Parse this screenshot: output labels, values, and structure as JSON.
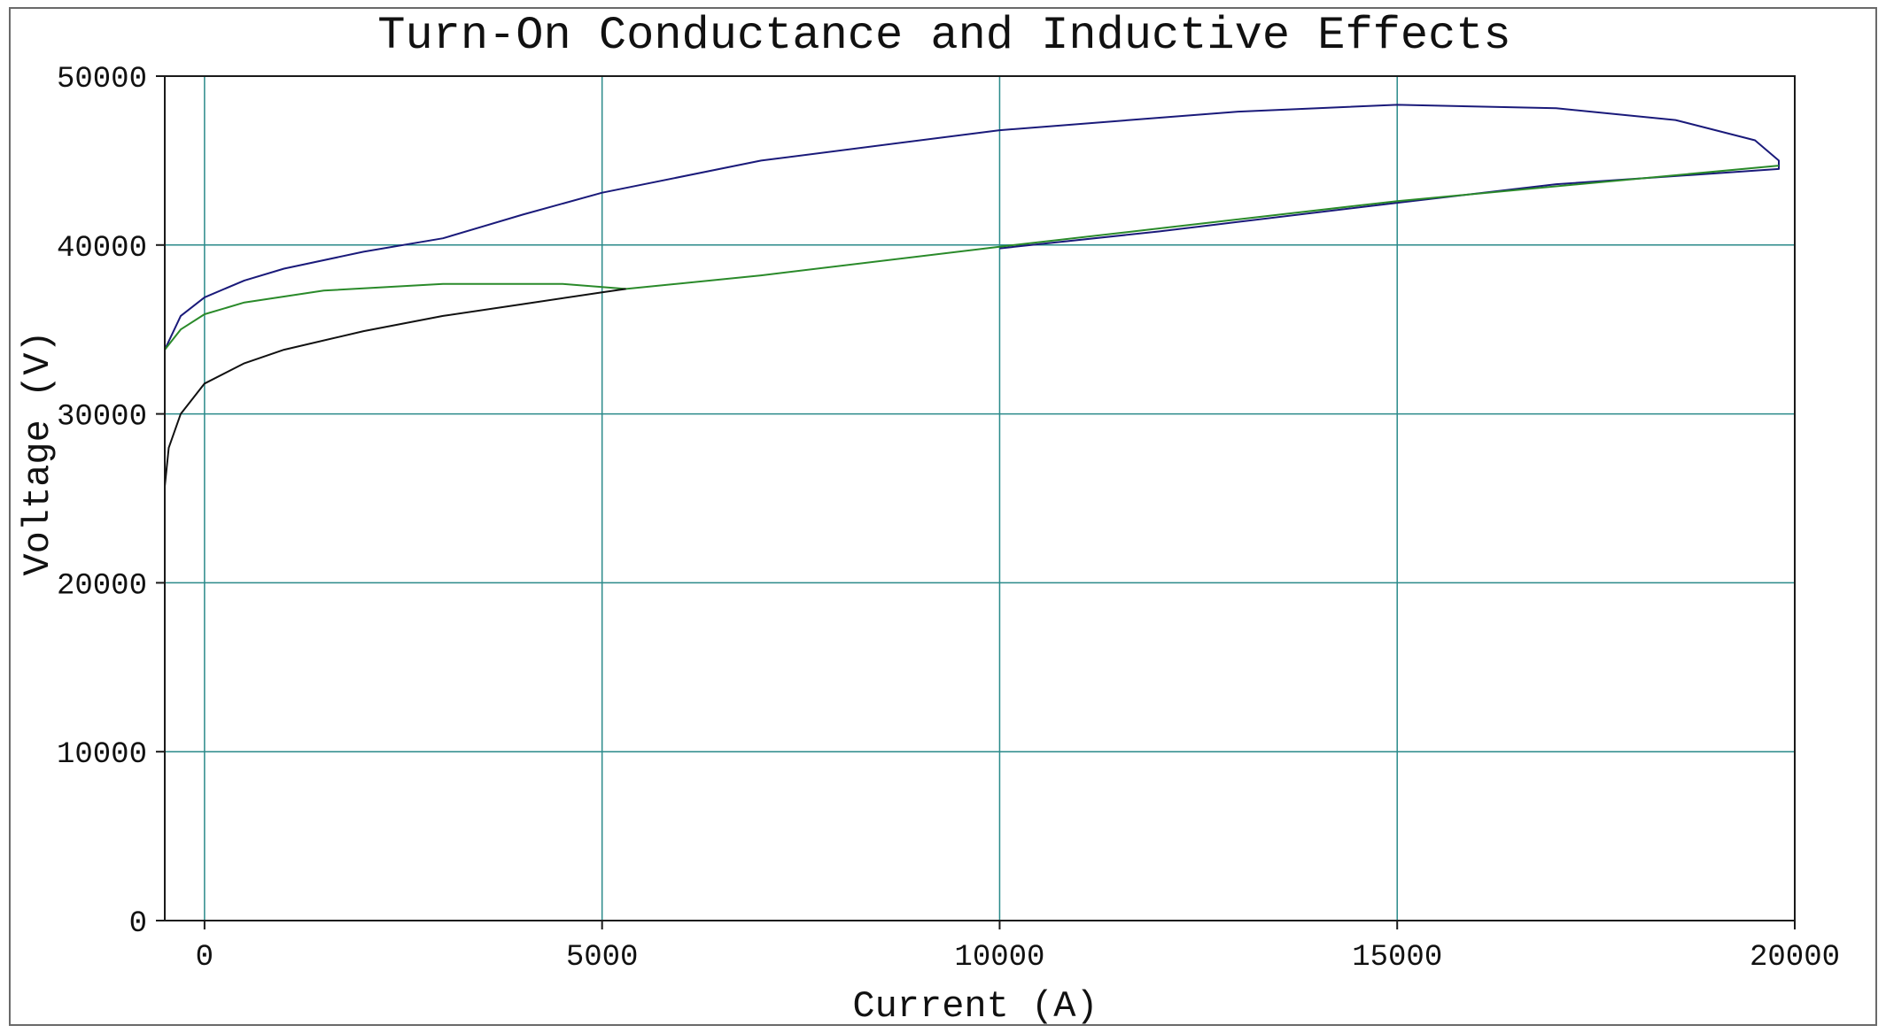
{
  "chart_data": {
    "type": "line",
    "title": "Turn-On Conductance and Inductive Effects",
    "xlabel": "Current (A)",
    "ylabel": "Voltage (V)",
    "xlim": [
      -500,
      20000
    ],
    "ylim": [
      0,
      50000
    ],
    "xticks": [
      0,
      5000,
      10000,
      15000,
      20000
    ],
    "yticks": [
      0,
      10000,
      20000,
      30000,
      40000,
      50000
    ],
    "grid": true,
    "colors": {
      "grid": "#2a8a8a",
      "axes": "#1a1a1a"
    },
    "series": [
      {
        "color": "#1a1a7a",
        "points": [
          [
            -500,
            31800
          ],
          [
            -500,
            33800
          ],
          [
            -300,
            35800
          ],
          [
            0,
            36900
          ],
          [
            500,
            37900
          ],
          [
            1000,
            38600
          ],
          [
            2000,
            39600
          ],
          [
            3000,
            40400
          ],
          [
            4000,
            41800
          ],
          [
            5000,
            43100
          ],
          [
            7000,
            45000
          ],
          [
            10000,
            46800
          ],
          [
            13000,
            47900
          ],
          [
            15000,
            48300
          ],
          [
            17000,
            48100
          ],
          [
            18500,
            47400
          ],
          [
            19500,
            46200
          ],
          [
            19800,
            45000
          ],
          [
            19800,
            44500
          ],
          [
            17000,
            43600
          ],
          [
            15000,
            42500
          ],
          [
            12000,
            40800
          ],
          [
            10000,
            39800
          ]
        ]
      },
      {
        "color": "#2a8a2a",
        "points": [
          [
            -500,
            33800
          ],
          [
            -300,
            35000
          ],
          [
            0,
            35900
          ],
          [
            500,
            36600
          ],
          [
            1500,
            37300
          ],
          [
            3000,
            37700
          ],
          [
            4500,
            37700
          ],
          [
            5300,
            37400
          ],
          [
            7000,
            38200
          ],
          [
            10000,
            39900
          ],
          [
            15000,
            42600
          ],
          [
            19800,
            44700
          ]
        ]
      },
      {
        "color": "#111111",
        "points": [
          [
            -500,
            25700
          ],
          [
            -450,
            28000
          ],
          [
            -300,
            30000
          ],
          [
            0,
            31800
          ],
          [
            500,
            33000
          ],
          [
            1000,
            33800
          ],
          [
            2000,
            34900
          ],
          [
            3000,
            35800
          ],
          [
            4000,
            36500
          ],
          [
            5000,
            37200
          ],
          [
            5300,
            37400
          ]
        ]
      },
      {
        "color": "#4ab04a",
        "points": [
          [
            -500,
            0
          ],
          [
            -500,
            34500
          ]
        ]
      }
    ]
  }
}
